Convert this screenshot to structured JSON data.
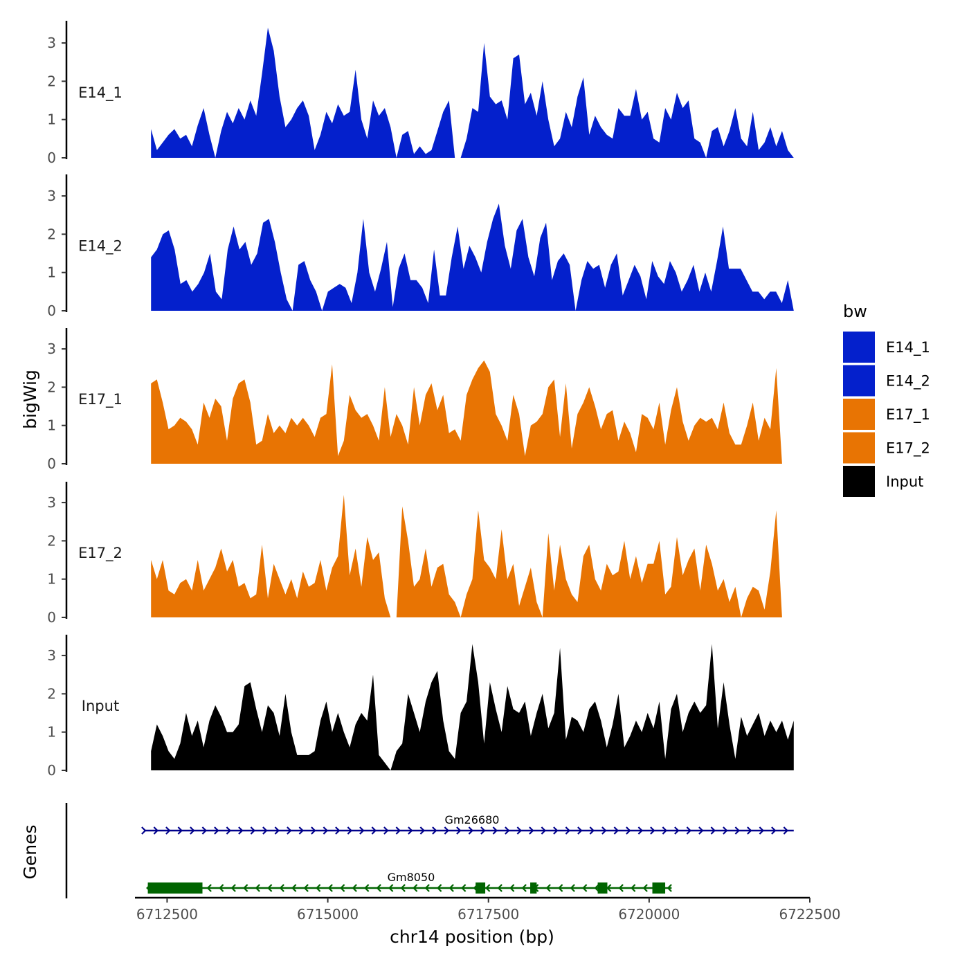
{
  "chart_data": {
    "type": "area",
    "title": "",
    "xlabel": "chr14 position (bp)",
    "ylabel_tracks": "bigWig",
    "ylabel_genes": "Genes",
    "xlim": [
      6712000,
      6722500
    ],
    "x_ticks": [
      6712500,
      6715000,
      6717500,
      6720000,
      6722500
    ],
    "x_tick_labels": [
      "6712500",
      "6715000",
      "6717500",
      "6720000",
      "6722500"
    ],
    "ylim": [
      0,
      3.5
    ],
    "y_ticks": [
      0,
      1,
      2,
      3
    ],
    "y_tick_labels": [
      "0",
      "1",
      "2",
      "3"
    ],
    "data_range": [
      6712250,
      6722250
    ],
    "legend": {
      "title": "bw",
      "position": "right",
      "items": [
        {
          "label": "E14_1",
          "color": "#0420CC"
        },
        {
          "label": "E14_2",
          "color": "#0420CC"
        },
        {
          "label": "E17_1",
          "color": "#E87403"
        },
        {
          "label": "E17_2",
          "color": "#E87403"
        },
        {
          "label": "Input",
          "color": "#000000"
        }
      ]
    },
    "series": [
      {
        "name": "E14_1",
        "color": "#0420CC",
        "values": [
          0.75,
          0.2,
          0.4,
          0.6,
          0.75,
          0.5,
          0.6,
          0.3,
          0.85,
          1.3,
          0.6,
          0.0,
          0.7,
          1.2,
          0.9,
          1.3,
          1.0,
          1.5,
          1.1,
          2.2,
          3.4,
          2.8,
          1.6,
          0.8,
          1.0,
          1.3,
          1.5,
          1.1,
          0.2,
          0.6,
          1.2,
          0.9,
          1.4,
          1.1,
          1.2,
          2.3,
          1.0,
          0.5,
          1.5,
          1.1,
          1.3,
          0.8,
          0.0,
          0.6,
          0.7,
          0.1,
          0.3,
          0.1,
          0.2,
          0.7,
          1.2,
          1.5,
          0.0,
          0.0,
          0.5,
          1.3,
          1.2,
          3.0,
          1.6,
          1.4,
          1.5,
          1.0,
          2.6,
          2.7,
          1.4,
          1.7,
          1.1,
          2.0,
          1.0,
          0.3,
          0.5,
          1.2,
          0.8,
          1.6,
          2.1,
          0.6,
          1.1,
          0.8,
          0.6,
          0.5,
          1.3,
          1.1,
          1.1,
          1.8,
          1.0,
          1.2,
          0.5,
          0.4,
          1.3,
          1.0,
          1.7,
          1.3,
          1.5,
          0.5,
          0.4,
          0.0,
          0.7,
          0.8,
          0.3,
          0.7,
          1.3,
          0.5,
          0.3,
          1.2,
          0.2,
          0.4,
          0.8,
          0.3,
          0.7,
          0.2,
          0.0
        ]
      },
      {
        "name": "E14_2",
        "color": "#0420CC",
        "values": [
          1.4,
          1.6,
          2.0,
          2.1,
          1.6,
          0.7,
          0.8,
          0.5,
          0.7,
          1.0,
          1.5,
          0.5,
          0.3,
          1.6,
          2.2,
          1.6,
          1.8,
          1.2,
          1.5,
          2.3,
          2.4,
          1.8,
          1.0,
          0.3,
          0.0,
          1.2,
          1.3,
          0.8,
          0.5,
          0.0,
          0.5,
          0.6,
          0.7,
          0.6,
          0.2,
          1.0,
          2.4,
          1.0,
          0.5,
          1.1,
          1.8,
          0.1,
          1.1,
          1.5,
          0.8,
          0.8,
          0.6,
          0.2,
          1.6,
          0.4,
          0.4,
          1.4,
          2.2,
          1.1,
          1.7,
          1.4,
          1.0,
          1.8,
          2.4,
          2.8,
          1.7,
          1.1,
          2.1,
          2.4,
          1.4,
          0.9,
          1.9,
          2.3,
          0.8,
          1.3,
          1.5,
          1.2,
          0.0,
          0.8,
          1.3,
          1.1,
          1.2,
          0.6,
          1.2,
          1.5,
          0.4,
          0.8,
          1.2,
          0.9,
          0.3,
          1.3,
          0.9,
          0.7,
          1.3,
          1.0,
          0.5,
          0.8,
          1.2,
          0.5,
          1.0,
          0.5,
          1.3,
          2.2,
          1.1,
          1.1,
          1.1,
          0.8,
          0.5,
          0.5,
          0.3,
          0.5,
          0.5,
          0.2,
          0.8,
          0.0
        ]
      },
      {
        "name": "E17_1",
        "color": "#E87403",
        "values": [
          2.1,
          2.2,
          1.6,
          0.9,
          1.0,
          1.2,
          1.1,
          0.9,
          0.5,
          1.6,
          1.2,
          1.7,
          1.5,
          0.6,
          1.7,
          2.1,
          2.2,
          1.6,
          0.5,
          0.6,
          1.3,
          0.8,
          1.0,
          0.8,
          1.2,
          1.0,
          1.2,
          1.0,
          0.7,
          1.2,
          1.3,
          2.6,
          0.2,
          0.6,
          1.8,
          1.4,
          1.2,
          1.3,
          1.0,
          0.6,
          2.0,
          0.7,
          1.3,
          1.0,
          0.5,
          2.0,
          1.0,
          1.8,
          2.1,
          1.4,
          1.8,
          0.8,
          0.9,
          0.6,
          1.8,
          2.2,
          2.5,
          2.7,
          2.4,
          1.3,
          1.0,
          0.6,
          1.8,
          1.3,
          0.2,
          1.0,
          1.1,
          1.3,
          2.0,
          2.2,
          0.7,
          2.1,
          0.4,
          1.3,
          1.6,
          2.0,
          1.5,
          0.9,
          1.3,
          1.4,
          0.6,
          1.1,
          0.8,
          0.3,
          1.3,
          1.2,
          0.9,
          1.6,
          0.5,
          1.4,
          2.0,
          1.1,
          0.6,
          1.0,
          1.2,
          1.1,
          1.2,
          0.9,
          1.6,
          0.8,
          0.5,
          0.5,
          1.0,
          1.6,
          0.6,
          1.2,
          0.9,
          2.5,
          0.0,
          0.0,
          0.0
        ]
      },
      {
        "name": "E17_2",
        "color": "#E87403",
        "values": [
          1.5,
          1.0,
          1.5,
          0.7,
          0.6,
          0.9,
          1.0,
          0.7,
          1.5,
          0.7,
          1.0,
          1.3,
          1.8,
          1.2,
          1.5,
          0.8,
          0.9,
          0.5,
          0.6,
          1.9,
          0.5,
          1.4,
          1.0,
          0.6,
          1.0,
          0.5,
          1.2,
          0.8,
          0.9,
          1.5,
          0.7,
          1.3,
          1.6,
          3.2,
          1.1,
          1.8,
          0.8,
          2.1,
          1.5,
          1.7,
          0.5,
          0.0,
          0.0,
          2.9,
          2.0,
          0.8,
          1.0,
          1.8,
          0.8,
          1.3,
          1.4,
          0.6,
          0.4,
          0.0,
          0.6,
          1.0,
          2.8,
          1.5,
          1.3,
          1.0,
          2.3,
          1.0,
          1.4,
          0.3,
          0.8,
          1.3,
          0.4,
          0.0,
          2.2,
          0.7,
          1.9,
          1.0,
          0.6,
          0.4,
          1.6,
          1.9,
          1.0,
          0.7,
          1.4,
          1.1,
          1.2,
          2.0,
          1.0,
          1.6,
          0.9,
          1.4,
          1.4,
          2.0,
          0.6,
          0.8,
          2.1,
          1.1,
          1.5,
          1.8,
          0.7,
          1.9,
          1.4,
          0.7,
          1.0,
          0.4,
          0.8,
          0.0,
          0.5,
          0.8,
          0.7,
          0.2,
          1.2,
          2.8,
          0.0,
          0.0,
          0.0
        ]
      },
      {
        "name": "Input",
        "color": "#000000",
        "values": [
          0.5,
          1.2,
          0.9,
          0.5,
          0.3,
          0.7,
          1.5,
          0.9,
          1.3,
          0.6,
          1.3,
          1.7,
          1.4,
          1.0,
          1.0,
          1.2,
          2.2,
          2.3,
          1.6,
          1.0,
          1.7,
          1.5,
          0.9,
          2.0,
          1.0,
          0.4,
          0.4,
          0.4,
          0.5,
          1.3,
          1.8,
          1.0,
          1.5,
          1.0,
          0.6,
          1.2,
          1.5,
          1.3,
          2.5,
          0.4,
          0.2,
          0.0,
          0.5,
          0.7,
          2.0,
          1.5,
          1.0,
          1.8,
          2.3,
          2.6,
          1.3,
          0.5,
          0.3,
          1.5,
          1.8,
          3.3,
          2.3,
          0.7,
          2.3,
          1.6,
          1.0,
          2.2,
          1.6,
          1.5,
          1.8,
          0.9,
          1.5,
          2.0,
          1.1,
          1.5,
          3.2,
          0.8,
          1.4,
          1.3,
          1.0,
          1.6,
          1.8,
          1.3,
          0.6,
          1.2,
          2.0,
          0.6,
          0.9,
          1.3,
          1.0,
          1.5,
          1.1,
          1.8,
          0.3,
          1.6,
          2.0,
          1.0,
          1.5,
          1.8,
          1.5,
          1.7,
          3.3,
          1.1,
          2.3,
          1.2,
          0.3,
          1.4,
          0.9,
          1.2,
          1.5,
          0.9,
          1.3,
          1.0,
          1.3,
          0.8,
          1.3
        ]
      }
    ],
    "genes": [
      {
        "name": "Gm26680",
        "strand": "+",
        "color": "#00008B",
        "start": 6712150,
        "end": 6722250,
        "exons": []
      },
      {
        "name": "Gm8050",
        "strand": "-",
        "color": "#006400",
        "start": 6712200,
        "end": 6720350,
        "exons": [
          [
            6712200,
            6713050
          ],
          [
            6717300,
            6717450
          ],
          [
            6718150,
            6718250
          ],
          [
            6719200,
            6719350
          ],
          [
            6720050,
            6720250
          ]
        ]
      }
    ]
  }
}
